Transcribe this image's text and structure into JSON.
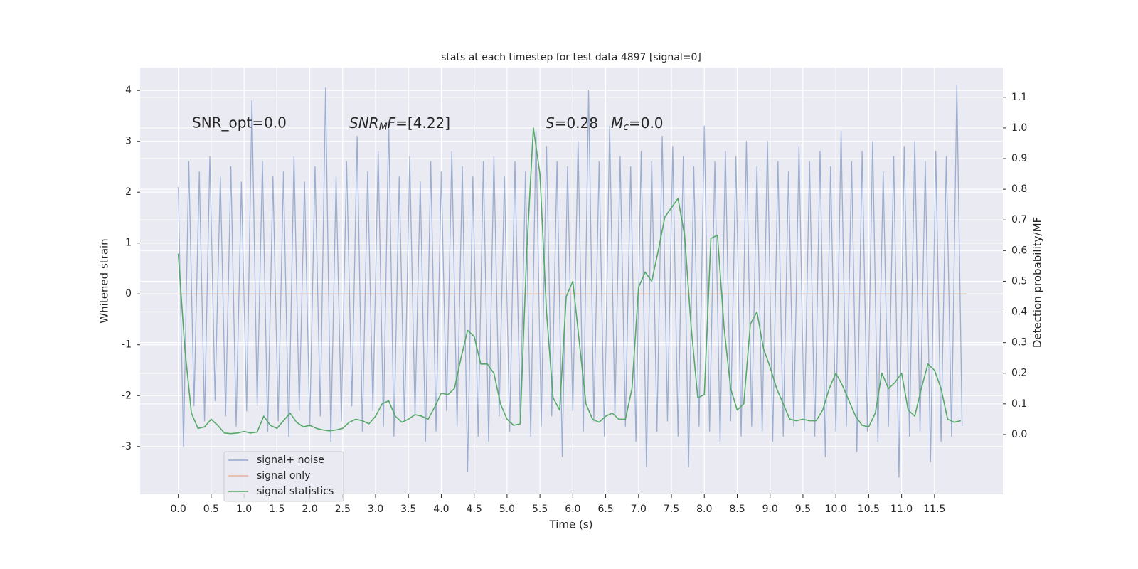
{
  "chart_data": {
    "type": "line",
    "title": "stats at each timestep for test data 4897 [signal=0]",
    "xlabel": "Time (s)",
    "ylabel": "Whitened strain",
    "y2label": "Detection probability/MF",
    "annotations": [
      "SNR_opt=0.0",
      [
        "SNR",
        "M",
        "F",
        "=[4.22]"
      ],
      [
        "S",
        "=0.28",
        "M",
        "c",
        "=0.0"
      ]
    ],
    "xlim": [
      -0.58,
      12.54
    ],
    "ylim": [
      -3.94,
      4.45
    ],
    "y2lim": [
      -0.195,
      1.197
    ],
    "xticks": [
      {
        "value": 0,
        "label": "0.0"
      },
      0.5,
      {
        "value": 1,
        "label": "1.0"
      },
      1.5,
      {
        "value": 2,
        "label": "2.0"
      },
      2.5,
      {
        "value": 3,
        "label": "3.0"
      },
      3.5,
      {
        "value": 4,
        "label": "4.0"
      },
      4.5,
      {
        "value": 5,
        "label": "5.0"
      },
      5.5,
      {
        "value": 6,
        "label": "6.0"
      },
      6.5,
      {
        "value": 7,
        "label": "7.0"
      },
      7.5,
      {
        "value": 8,
        "label": "8.0"
      },
      8.5,
      {
        "value": 9,
        "label": "9.0"
      },
      9.5,
      {
        "value": 10,
        "label": "10.0"
      },
      10.5,
      {
        "value": 11,
        "label": "11.0"
      },
      11.5
    ],
    "yticks": [
      -3,
      -2,
      -1,
      0,
      1,
      2,
      3,
      4
    ],
    "y2ticks": [
      {
        "value": 0,
        "label": "0.0"
      },
      0.1,
      0.2,
      0.3,
      0.4,
      0.5,
      0.6,
      0.7,
      0.8,
      0.9,
      {
        "value": 1,
        "label": "1.0"
      },
      1.1
    ],
    "grid": true,
    "legend": "lower left",
    "series": [
      {
        "name": "signal+ noise",
        "color": "#4c72b0",
        "x": [
          0,
          0.08,
          0.16,
          0.24,
          0.32,
          0.4,
          0.48,
          0.56,
          0.64,
          0.72,
          0.8,
          0.88,
          0.96,
          1.04,
          1.12,
          1.2,
          1.28,
          1.36,
          1.44,
          1.52,
          1.6,
          1.68,
          1.76,
          1.84,
          1.92,
          2,
          2.08,
          2.16,
          2.24,
          2.32,
          2.4,
          2.48,
          2.56,
          2.64,
          2.72,
          2.8,
          2.88,
          2.96,
          3.04,
          3.12,
          3.2,
          3.28,
          3.36,
          3.44,
          3.52,
          3.6,
          3.68,
          3.76,
          3.84,
          3.92,
          4,
          4.08,
          4.16,
          4.24,
          4.32,
          4.4,
          4.48,
          4.56,
          4.64,
          4.72,
          4.8,
          4.88,
          4.96,
          5.04,
          5.12,
          5.2,
          5.28,
          5.36,
          5.44,
          5.52,
          5.6,
          5.68,
          5.76,
          5.84,
          5.92,
          6,
          6.08,
          6.16,
          6.24,
          6.32,
          6.4,
          6.48,
          6.56,
          6.64,
          6.72,
          6.8,
          6.88,
          6.96,
          7.04,
          7.12,
          7.2,
          7.28,
          7.36,
          7.44,
          7.52,
          7.6,
          7.68,
          7.76,
          7.84,
          7.92,
          8,
          8.08,
          8.16,
          8.24,
          8.32,
          8.4,
          8.48,
          8.56,
          8.64,
          8.72,
          8.8,
          8.88,
          8.96,
          9.04,
          9.12,
          9.2,
          9.28,
          9.36,
          9.44,
          9.52,
          9.6,
          9.68,
          9.76,
          9.84,
          9.92,
          10,
          10.08,
          10.16,
          10.24,
          10.32,
          10.4,
          10.48,
          10.56,
          10.64,
          10.72,
          10.8,
          10.88,
          10.96,
          11.04,
          11.12,
          11.2,
          11.28,
          11.36,
          11.44,
          11.52,
          11.6,
          11.68,
          11.76,
          11.84,
          11.92
        ],
        "values": [
          2.1,
          -3.0,
          2.6,
          -2.2,
          2.4,
          -2.5,
          2.7,
          -2.1,
          2.3,
          -2.4,
          2.5,
          -2.6,
          2.2,
          -2.3,
          3.8,
          -2.2,
          2.6,
          -2.7,
          2.3,
          -2.5,
          2.4,
          -2.8,
          2.7,
          -2.3,
          2.2,
          -2.6,
          2.5,
          -2.4,
          4.05,
          -2.9,
          2.3,
          -2.5,
          2.6,
          -2.2,
          3.1,
          -2.7,
          2.4,
          -2.3,
          2.8,
          -2.6,
          3.4,
          -2.8,
          2.3,
          -2.5,
          2.7,
          -2.4,
          2.2,
          -2.9,
          2.6,
          -2.7,
          2.4,
          -2.3,
          2.8,
          -2.6,
          2.5,
          -3.5,
          2.3,
          -2.8,
          2.6,
          -2.9,
          2.7,
          -2.4,
          2.3,
          -2.7,
          2.6,
          -2.5,
          2.4,
          -2.8,
          3.2,
          -2.6,
          2.9,
          -2.4,
          2.6,
          -3.2,
          2.5,
          -2.3,
          3.0,
          -2.7,
          4.0,
          -2.5,
          2.6,
          -2.8,
          3.3,
          -2.4,
          2.7,
          -2.6,
          2.5,
          -2.9,
          2.8,
          -3.4,
          2.6,
          -2.7,
          3.1,
          -2.5,
          2.9,
          -2.8,
          2.7,
          -3.4,
          2.5,
          -2.6,
          3.3,
          -2.7,
          2.6,
          -2.9,
          2.8,
          -2.5,
          2.7,
          -2.8,
          3.0,
          -2.6,
          2.5,
          -2.7,
          3.0,
          -2.9,
          2.6,
          -2.8,
          2.4,
          -2.6,
          2.9,
          -2.7,
          2.6,
          -2.8,
          2.8,
          -3.2,
          2.5,
          -2.7,
          3.2,
          -2.6,
          2.6,
          -3.1,
          2.8,
          -2.7,
          3.0,
          -2.9,
          2.4,
          -2.6,
          2.7,
          -3.6,
          2.9,
          -2.8,
          3.0,
          -2.7,
          2.6,
          -3.3,
          2.8,
          -2.9,
          2.7,
          -2.8,
          4.1,
          -2.6
        ]
      },
      {
        "name": "signal only",
        "color": "#dd8452",
        "x": [
          0,
          11.99
        ],
        "values": [
          0,
          0
        ]
      },
      {
        "name": "signal statistics",
        "color": "#55a868",
        "axis": "y2",
        "x": [
          0,
          0.1,
          0.2,
          0.3,
          0.4,
          0.5,
          0.6,
          0.7,
          0.8,
          0.9,
          1,
          1.1,
          1.2,
          1.3,
          1.4,
          1.5,
          1.6,
          1.7,
          1.8,
          1.9,
          2,
          2.1,
          2.2,
          2.3,
          2.4,
          2.5,
          2.6,
          2.7,
          2.8,
          2.9,
          3,
          3.1,
          3.2,
          3.3,
          3.4,
          3.5,
          3.6,
          3.7,
          3.8,
          3.9,
          4,
          4.1,
          4.2,
          4.3,
          4.4,
          4.5,
          4.6,
          4.7,
          4.8,
          4.9,
          5,
          5.1,
          5.2,
          5.3,
          5.4,
          5.5,
          5.6,
          5.7,
          5.8,
          5.9,
          6,
          6.1,
          6.2,
          6.3,
          6.4,
          6.5,
          6.6,
          6.7,
          6.8,
          6.9,
          7,
          7.1,
          7.2,
          7.3,
          7.4,
          7.5,
          7.6,
          7.7,
          7.8,
          7.9,
          8,
          8.1,
          8.2,
          8.3,
          8.4,
          8.5,
          8.6,
          8.7,
          8.8,
          8.9,
          9,
          9.1,
          9.2,
          9.3,
          9.4,
          9.5,
          9.6,
          9.7,
          9.8,
          9.9,
          10,
          10.1,
          10.2,
          10.3,
          10.4,
          10.5,
          10.6,
          10.7,
          10.8,
          10.9,
          11,
          11.1,
          11.2,
          11.3,
          11.4,
          11.5,
          11.6,
          11.7,
          11.8,
          11.9
        ],
        "values": [
          0.59,
          0.28,
          0.07,
          0.02,
          0.025,
          0.05,
          0.03,
          0.005,
          0.003,
          0.005,
          0.01,
          0.005,
          0.008,
          0.06,
          0.03,
          0.02,
          0.045,
          0.07,
          0.04,
          0.025,
          0.03,
          0.02,
          0.015,
          0.012,
          0.015,
          0.02,
          0.04,
          0.05,
          0.045,
          0.035,
          0.06,
          0.1,
          0.11,
          0.06,
          0.04,
          0.05,
          0.065,
          0.06,
          0.05,
          0.09,
          0.135,
          0.13,
          0.15,
          0.25,
          0.34,
          0.32,
          0.23,
          0.23,
          0.2,
          0.1,
          0.05,
          0.03,
          0.035,
          0.6,
          1.0,
          0.85,
          0.4,
          0.12,
          0.08,
          0.45,
          0.5,
          0.3,
          0.1,
          0.05,
          0.04,
          0.06,
          0.07,
          0.05,
          0.05,
          0.15,
          0.48,
          0.53,
          0.5,
          0.6,
          0.71,
          0.74,
          0.77,
          0.65,
          0.35,
          0.12,
          0.13,
          0.64,
          0.65,
          0.35,
          0.15,
          0.08,
          0.1,
          0.36,
          0.4,
          0.28,
          0.22,
          0.15,
          0.1,
          0.05,
          0.045,
          0.05,
          0.045,
          0.045,
          0.08,
          0.15,
          0.2,
          0.16,
          0.11,
          0.06,
          0.03,
          0.025,
          0.07,
          0.2,
          0.15,
          0.17,
          0.2,
          0.08,
          0.06,
          0.15,
          0.23,
          0.21,
          0.15,
          0.05,
          0.04,
          0.045
        ]
      }
    ]
  }
}
